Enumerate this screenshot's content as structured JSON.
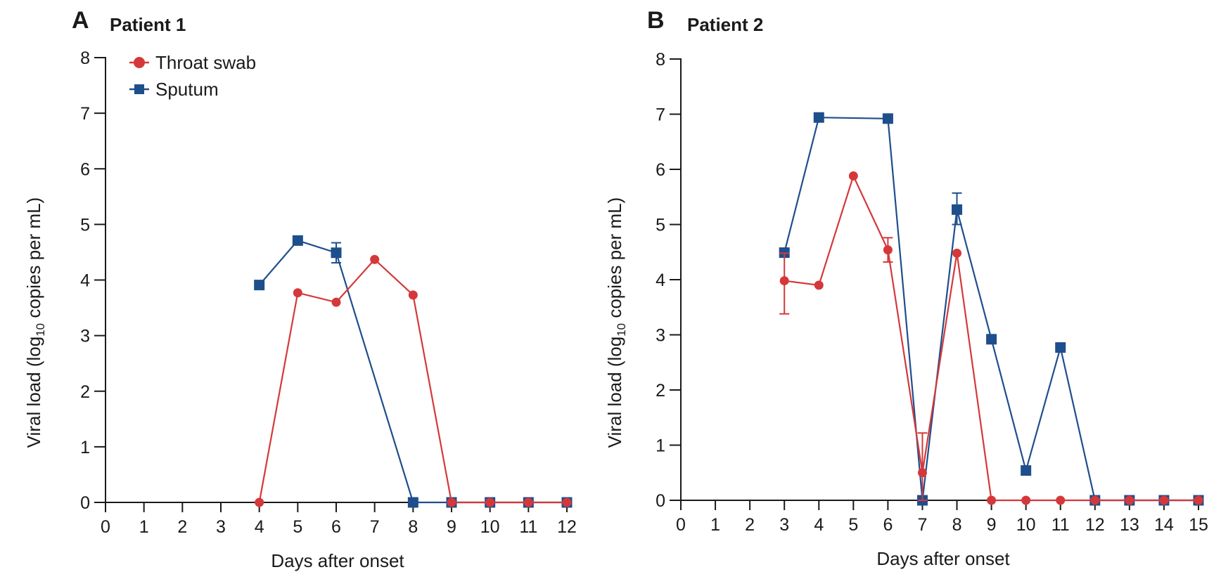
{
  "colors": {
    "throat": "#d5383a",
    "sputum": "#1e4e8c",
    "axis": "#1a1a1a"
  },
  "panels": [
    {
      "letter": "A",
      "title": "Patient 1",
      "xlabel": "Days after onset",
      "ylabel_main": "Viral load (log",
      "ylabel_sub": "10",
      "ylabel_tail": " copies per mL)",
      "legend": {
        "throat": "Throat swab",
        "sputum": "Sputum"
      }
    },
    {
      "letter": "B",
      "title": "Patient 2",
      "xlabel": "Days after onset",
      "ylabel_main": "Viral load (log",
      "ylabel_sub": "10",
      "ylabel_tail": " copies per mL)"
    }
  ],
  "chart_data": [
    {
      "type": "line",
      "title": "Patient 1",
      "xlabel": "Days after onset",
      "ylabel": "Viral load (log10 copies per mL)",
      "xlim": [
        0,
        12
      ],
      "ylim": [
        0,
        8
      ],
      "x_ticks": [
        0,
        1,
        2,
        3,
        4,
        5,
        6,
        7,
        8,
        9,
        10,
        11,
        12
      ],
      "y_ticks": [
        0,
        1,
        2,
        3,
        4,
        5,
        6,
        7,
        8
      ],
      "legend_position": "top-left",
      "series": [
        {
          "name": "Throat swab",
          "marker": "circle",
          "x": [
            4,
            5,
            6,
            7,
            8,
            9,
            10,
            11,
            12
          ],
          "y": [
            0,
            3.77,
            3.6,
            4.37,
            3.73,
            0,
            0,
            0,
            0
          ]
        },
        {
          "name": "Sputum",
          "marker": "square",
          "x": [
            4,
            5,
            6,
            8,
            9,
            10,
            11,
            12
          ],
          "y": [
            3.91,
            4.71,
            4.49,
            0,
            0,
            0,
            0,
            0
          ],
          "error_bars": [
            {
              "x": 6,
              "low": 4.31,
              "high": 4.67
            }
          ]
        }
      ]
    },
    {
      "type": "line",
      "title": "Patient 2",
      "xlabel": "Days after onset",
      "ylabel": "Viral load (log10 copies per mL)",
      "xlim": [
        0,
        15
      ],
      "ylim": [
        0,
        8
      ],
      "x_ticks": [
        0,
        1,
        2,
        3,
        4,
        5,
        6,
        7,
        8,
        9,
        10,
        11,
        12,
        13,
        14,
        15
      ],
      "y_ticks": [
        0,
        1,
        2,
        3,
        4,
        5,
        6,
        7,
        8
      ],
      "series": [
        {
          "name": "Throat swab",
          "marker": "circle",
          "x": [
            3,
            4,
            5,
            6,
            7,
            8,
            9,
            10,
            11,
            12,
            13,
            14,
            15
          ],
          "y": [
            3.98,
            3.9,
            5.88,
            4.54,
            0.5,
            4.48,
            0,
            0,
            0,
            0,
            0,
            0,
            0
          ],
          "error_bars": [
            {
              "x": 3,
              "low": 3.38,
              "high": 4.48
            },
            {
              "x": 6,
              "low": 4.32,
              "high": 4.76
            },
            {
              "x": 7,
              "low": 0,
              "high": 1.22
            }
          ]
        },
        {
          "name": "Sputum",
          "marker": "square",
          "x": [
            3,
            4,
            5,
            6,
            7,
            8,
            9,
            10,
            11,
            12,
            13,
            14,
            15
          ],
          "y": [
            4.49,
            6.94,
            null,
            6.92,
            0,
            5.27,
            2.92,
            0.54,
            2.77,
            0,
            0,
            0,
            0
          ],
          "error_bars": [
            {
              "x": 8,
              "low": 5.0,
              "high": 5.57
            }
          ]
        }
      ]
    }
  ]
}
